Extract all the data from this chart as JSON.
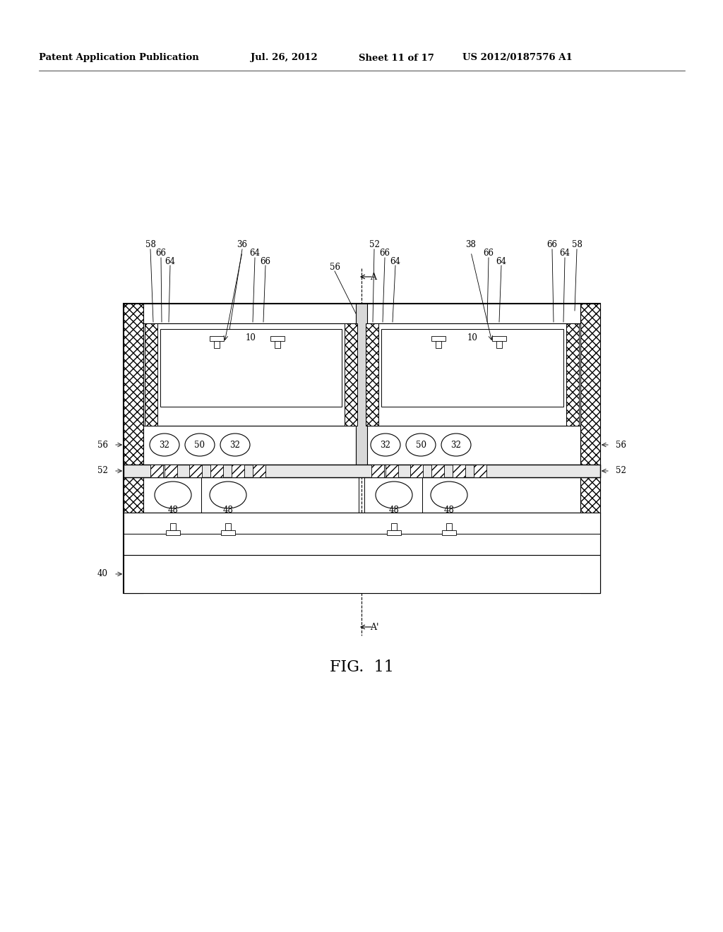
{
  "bg_color": "#ffffff",
  "header_text": "Patent Application Publication",
  "header_date": "Jul. 26, 2012",
  "header_sheet": "Sheet 11 of 17",
  "header_patent": "US 2012/0187576 A1",
  "fig_label": "FIG.  11",
  "label_fontsize": 8.5,
  "header_fontsize": 9.5
}
